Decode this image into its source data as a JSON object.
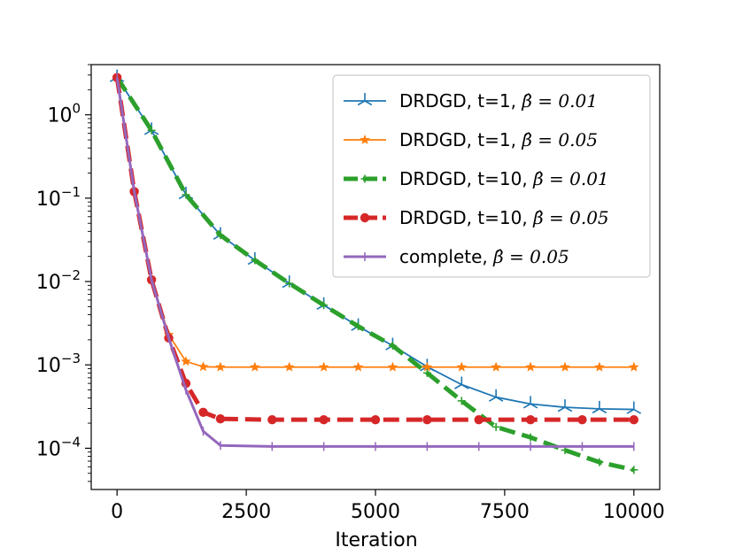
{
  "chart_data": {
    "type": "line",
    "title": "",
    "xlabel": "Iteration",
    "ylabel": "",
    "yscale": "log",
    "xlim": [
      -500,
      10500
    ],
    "ylim": [
      3.2e-05,
      4.0
    ],
    "x_ticks": [
      0,
      2500,
      5000,
      7500,
      10000
    ],
    "x_tick_labels": [
      "0",
      "2500",
      "5000",
      "7500",
      "10000"
    ],
    "y_ticks": [
      1,
      0.1,
      0.01,
      0.001,
      0.0001
    ],
    "y_tick_labels": [
      {
        "base": "10",
        "exp": "0"
      },
      {
        "base": "10",
        "exp": "−1"
      },
      {
        "base": "10",
        "exp": "−2"
      },
      {
        "base": "10",
        "exp": "−3"
      },
      {
        "base": "10",
        "exp": "−4"
      }
    ],
    "legend_position": "top-right",
    "series": [
      {
        "name_prefix": "DRDGD, t=1, ",
        "name_beta": "β̂ = 0.01",
        "color": "#1f77b4",
        "line": "solid",
        "width": 1.8,
        "marker": "tri",
        "x": [
          0,
          667,
          1333,
          2000,
          2667,
          3333,
          4000,
          4667,
          5333,
          6000,
          6667,
          7333,
          8000,
          8667,
          9333,
          10000
        ],
        "y": [
          2.8,
          0.65,
          0.11,
          0.036,
          0.018,
          0.0095,
          0.0052,
          0.0029,
          0.0017,
          0.00095,
          0.00058,
          0.00041,
          0.00034,
          0.00031,
          0.000297,
          0.000292
        ]
      },
      {
        "name_prefix": "DRDGD, t=1, ",
        "name_beta": "β̂ = 0.05",
        "color": "#ff7f0e",
        "line": "solid",
        "width": 1.8,
        "marker": "star",
        "x": [
          0,
          333,
          667,
          1000,
          1333,
          1667,
          2000,
          2667,
          3333,
          4000,
          4667,
          5333,
          6000,
          6667,
          7333,
          8000,
          8667,
          9333,
          10000
        ],
        "y": [
          2.8,
          0.12,
          0.0105,
          0.0023,
          0.0011,
          0.00095,
          0.00094,
          0.00094,
          0.00094,
          0.00094,
          0.00094,
          0.00094,
          0.00094,
          0.00094,
          0.00094,
          0.00094,
          0.00094,
          0.00094,
          0.00094
        ]
      },
      {
        "name_prefix": "DRDGD, t=10, ",
        "name_beta": "β̂ = 0.01",
        "color": "#2ca02c",
        "line": "dashed",
        "width": 5,
        "marker": "plus",
        "x": [
          0,
          667,
          1333,
          2000,
          2667,
          3333,
          4000,
          4667,
          5333,
          6000,
          6667,
          7333,
          8000,
          8667,
          9333,
          10000
        ],
        "y": [
          2.8,
          0.65,
          0.11,
          0.036,
          0.018,
          0.0095,
          0.0052,
          0.0029,
          0.0017,
          0.0008,
          0.00037,
          0.00018,
          0.000135,
          9.5e-05,
          6.8e-05,
          5.5e-05
        ]
      },
      {
        "name_prefix": "DRDGD, t=10, ",
        "name_beta": "β̂ = 0.05",
        "color": "#d62728",
        "line": "dashed",
        "width": 5,
        "marker": "circle",
        "x": [
          0,
          333,
          667,
          1000,
          1333,
          1667,
          2000,
          3000,
          4000,
          5000,
          6000,
          7000,
          8000,
          9000,
          10000
        ],
        "y": [
          2.8,
          0.12,
          0.0105,
          0.0021,
          0.0006,
          0.00027,
          0.000225,
          0.00022,
          0.00022,
          0.00022,
          0.00022,
          0.00022,
          0.00022,
          0.00022,
          0.00022
        ]
      },
      {
        "name_prefix": "complete, ",
        "name_beta": "β̂ = 0.05",
        "color": "#9467bd",
        "line": "solid",
        "width": 3,
        "marker": "tick",
        "x": [
          0,
          333,
          667,
          1000,
          1333,
          1667,
          2000,
          3000,
          4000,
          5000,
          6000,
          7000,
          8000,
          9000,
          10000
        ],
        "y": [
          2.8,
          0.12,
          0.0105,
          0.0021,
          0.0005,
          0.00016,
          0.000108,
          0.000105,
          0.000105,
          0.000105,
          0.000105,
          0.000105,
          0.000105,
          0.000105,
          0.000105
        ]
      }
    ]
  }
}
